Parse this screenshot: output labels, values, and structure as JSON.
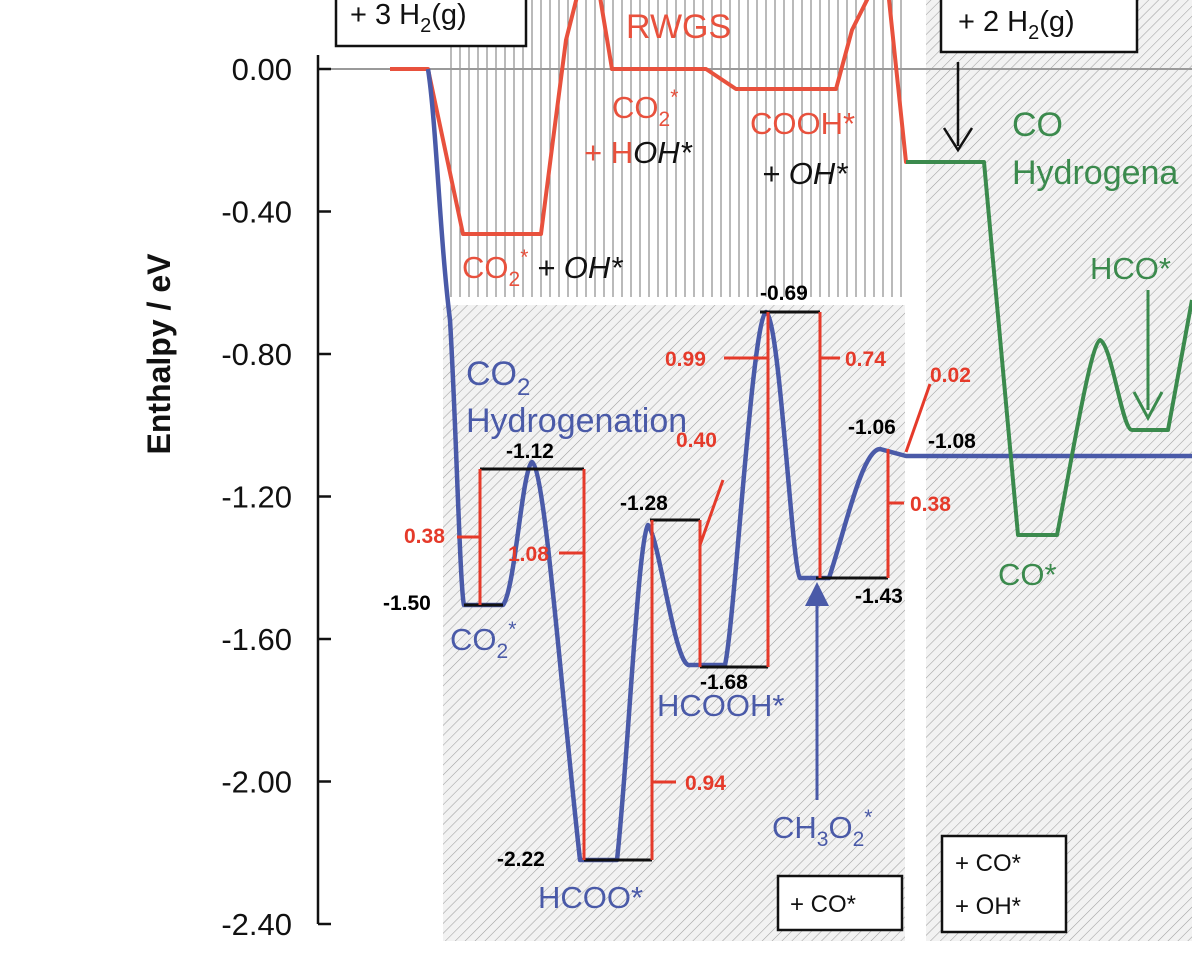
{
  "chart_data": {
    "type": "line",
    "ylabel": "Enthalpy / eV",
    "ylim": [
      -2.4,
      0.2
    ],
    "yticks": [
      "0.00",
      "-0.40",
      "-0.80",
      "-1.20",
      "-1.60",
      "-2.00",
      "-2.40"
    ],
    "ytick_values": [
      0.0,
      -0.4,
      -0.8,
      -1.2,
      -1.6,
      -2.0,
      -2.4
    ],
    "grid": false,
    "regions": {
      "rwgs_label": "RWGS",
      "co2_hydrogenation_label_1": "CO",
      "co2_hydrogenation_label_1_sub": "2",
      "co2_hydrogenation_label_2": "Hydrogenation",
      "co_hydrogenation_label_1": "CO",
      "co_hydrogenation_label_2": "Hydrogena"
    },
    "reactant_boxes": {
      "left": {
        "pre": "+ 3 H",
        "sub": "2",
        "post": "(g)"
      },
      "right": {
        "pre": "+ 2 H",
        "sub": "2",
        "post": "(g)"
      },
      "co_box": "+ CO*",
      "co_oh_box_1": "+ CO*",
      "co_oh_box_2": "+ OH*"
    },
    "series": [
      {
        "name": "RWGS",
        "color": "#e8513d",
        "points": [
          [
            0,
            0.0
          ],
          [
            1,
            -0.46
          ],
          [
            2,
            0.0
          ],
          [
            3,
            -0.05
          ],
          [
            4,
            -0.26
          ]
        ]
      },
      {
        "name": "CO2 Hydrogenation",
        "color": "#4a5aa8",
        "points": [
          [
            0,
            0.0
          ],
          [
            1,
            -1.5
          ],
          [
            2,
            -1.12
          ],
          [
            3,
            -2.22
          ],
          [
            4,
            -1.28
          ],
          [
            5,
            -1.68
          ],
          [
            6,
            -0.69
          ],
          [
            7,
            -1.43
          ],
          [
            8,
            -1.06
          ],
          [
            9,
            -1.08
          ]
        ]
      },
      {
        "name": "CO Hydrogenation",
        "color": "#3b8a4d",
        "points": [
          [
            0,
            -0.26
          ],
          [
            1,
            -1.31
          ],
          [
            2,
            -0.76
          ],
          [
            3,
            -1.02
          ]
        ]
      }
    ],
    "species_labels": {
      "co2_oh_red": "CO",
      "co2_oh_red_sub": "2",
      "co2_oh_red_sup": "*",
      "co2_oh_black": " + OH*",
      "co2_hoh_1": "CO",
      "co2_hoh_1_sub": "2",
      "co2_hoh_1_sup": "*",
      "co2_hoh_2_red": "+ H",
      "co2_hoh_2_black": "OH*",
      "cooh_red": "COOH*",
      "cooh_black": "+ OH*",
      "co2_star": "CO",
      "co2_star_sub": "2",
      "co2_star_sup": "*",
      "hcoo": "HCOO*",
      "hcooh": "HCOOH*",
      "ch3o2_a": "CH",
      "ch3o2_sub1": "3",
      "ch3o2_b": "O",
      "ch3o2_sub2": "2",
      "ch3o2_sup": "*",
      "co_star": "CO*",
      "hco_star": "HCO*"
    },
    "energy_labels": {
      "e1": "-1.50",
      "e2": "-1.12",
      "e3": "-2.22",
      "e4": "-1.28",
      "e5": "-1.68",
      "e6": "-0.69",
      "e7": "-1.43",
      "e8": "-1.06",
      "e9": "-1.08"
    },
    "barrier_labels": {
      "b1": "0.38",
      "b2": "1.08",
      "b3": "0.94",
      "b4": "0.40",
      "b5": "0.99",
      "b6": "0.74",
      "b7": "0.02",
      "b8": "0.38"
    }
  }
}
